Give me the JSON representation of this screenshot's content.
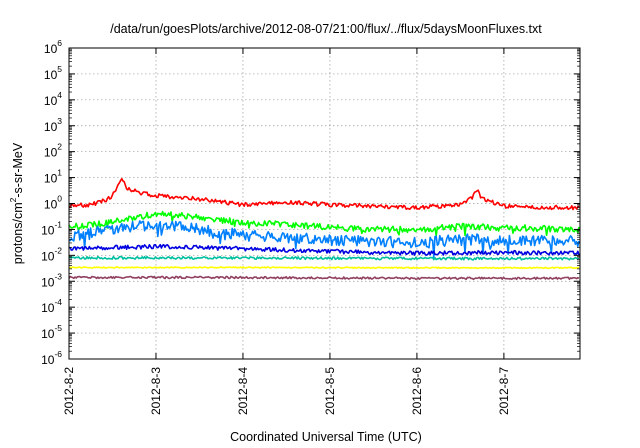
{
  "chart_data": {
    "type": "line",
    "title": "/data/run/goesPlots/archive/2012-08-07/21:00/flux/../flux/5daysMoonFluxes.txt",
    "xlabel": "Coordinated Universal Time (UTC)",
    "ylabel_base": "protons/cm",
    "ylabel_sup": "2",
    "ylabel_rest": "-s-sr-MeV",
    "y_scale": "log",
    "ylim": [
      1e-06,
      1000000.0
    ],
    "y_ticks": [
      {
        "base": "10",
        "exp": "-6"
      },
      {
        "base": "10",
        "exp": "-5"
      },
      {
        "base": "10",
        "exp": "-4"
      },
      {
        "base": "10",
        "exp": "-3"
      },
      {
        "base": "10",
        "exp": "-2"
      },
      {
        "base": "10",
        "exp": "-1"
      },
      {
        "base": "10",
        "exp": "0"
      },
      {
        "base": "10",
        "exp": "1"
      },
      {
        "base": "10",
        "exp": "2"
      },
      {
        "base": "10",
        "exp": "3"
      },
      {
        "base": "10",
        "exp": "4"
      },
      {
        "base": "10",
        "exp": "5"
      },
      {
        "base": "10",
        "exp": "6"
      }
    ],
    "x_ticks": [
      "2012-8-2",
      "2012-8-3",
      "2012-8-4",
      "2012-8-5",
      "2012-8-6",
      "2012-8-7"
    ],
    "xlim": [
      "2012-08-02",
      "2012-08-07T21:00"
    ],
    "grid": true,
    "legend": "none",
    "series": [
      {
        "color": "#ff0000",
        "noise": 0.08,
        "points": [
          [
            "2012-08-02T00:00",
            0.8
          ],
          [
            "2012-08-02T06:00",
            0.9
          ],
          [
            "2012-08-02T10:00",
            1.3
          ],
          [
            "2012-08-02T12:00",
            2.0
          ],
          [
            "2012-08-02T13:30",
            5.0
          ],
          [
            "2012-08-02T14:30",
            10.0
          ],
          [
            "2012-08-02T16:00",
            4.0
          ],
          [
            "2012-08-02T20:00",
            2.5
          ],
          [
            "2012-08-03T00:00",
            2.0
          ],
          [
            "2012-08-03T12:00",
            1.5
          ],
          [
            "2012-08-04T00:00",
            0.9
          ],
          [
            "2012-08-04T12:00",
            1.1
          ],
          [
            "2012-08-05T00:00",
            0.9
          ],
          [
            "2012-08-05T12:00",
            0.8
          ],
          [
            "2012-08-06T00:00",
            0.7
          ],
          [
            "2012-08-06T12:00",
            0.9
          ],
          [
            "2012-08-06T15:00",
            1.5
          ],
          [
            "2012-08-06T16:30",
            3.5
          ],
          [
            "2012-08-06T18:00",
            1.5
          ],
          [
            "2012-08-07T00:00",
            0.8
          ],
          [
            "2012-08-07T12:00",
            0.7
          ],
          [
            "2012-08-07T21:00",
            0.7
          ]
        ]
      },
      {
        "color": "#00ff00",
        "noise": 0.12,
        "points": [
          [
            "2012-08-02T00:00",
            0.12
          ],
          [
            "2012-08-02T12:00",
            0.2
          ],
          [
            "2012-08-03T00:00",
            0.4
          ],
          [
            "2012-08-03T12:00",
            0.3
          ],
          [
            "2012-08-04T00:00",
            0.18
          ],
          [
            "2012-08-04T12:00",
            0.16
          ],
          [
            "2012-08-05T00:00",
            0.12
          ],
          [
            "2012-08-05T12:00",
            0.1
          ],
          [
            "2012-08-06T00:00",
            0.1
          ],
          [
            "2012-08-06T12:00",
            0.13
          ],
          [
            "2012-08-07T00:00",
            0.12
          ],
          [
            "2012-08-07T21:00",
            0.1
          ]
        ]
      },
      {
        "color": "#0080ff",
        "noise": 0.22,
        "points": [
          [
            "2012-08-02T00:00",
            0.05
          ],
          [
            "2012-08-02T12:00",
            0.1
          ],
          [
            "2012-08-03T00:00",
            0.15
          ],
          [
            "2012-08-03T12:00",
            0.1
          ],
          [
            "2012-08-04T00:00",
            0.06
          ],
          [
            "2012-08-04T12:00",
            0.05
          ],
          [
            "2012-08-05T00:00",
            0.04
          ],
          [
            "2012-08-05T12:00",
            0.035
          ],
          [
            "2012-08-06T00:00",
            0.03
          ],
          [
            "2012-08-06T12:00",
            0.04
          ],
          [
            "2012-08-07T00:00",
            0.04
          ],
          [
            "2012-08-07T21:00",
            0.035
          ]
        ]
      },
      {
        "color": "#0000e0",
        "noise": 0.08,
        "points": [
          [
            "2012-08-02T00:00",
            0.018
          ],
          [
            "2012-08-03T00:00",
            0.022
          ],
          [
            "2012-08-04T00:00",
            0.018
          ],
          [
            "2012-08-05T00:00",
            0.014
          ],
          [
            "2012-08-06T00:00",
            0.012
          ],
          [
            "2012-08-07T00:00",
            0.013
          ],
          [
            "2012-08-07T21:00",
            0.012
          ]
        ]
      },
      {
        "color": "#00c0a0",
        "noise": 0.05,
        "points": [
          [
            "2012-08-02T00:00",
            0.008
          ],
          [
            "2012-08-04T00:00",
            0.008
          ],
          [
            "2012-08-06T00:00",
            0.0075
          ],
          [
            "2012-08-07T21:00",
            0.0075
          ]
        ]
      },
      {
        "color": "#ffff00",
        "noise": 0.02,
        "points": [
          [
            "2012-08-02T00:00",
            0.0034
          ],
          [
            "2012-08-04T00:00",
            0.0034
          ],
          [
            "2012-08-06T00:00",
            0.0033
          ],
          [
            "2012-08-07T21:00",
            0.0033
          ]
        ]
      },
      {
        "color": "#904060",
        "noise": 0.04,
        "points": [
          [
            "2012-08-02T00:00",
            0.0014
          ],
          [
            "2012-08-04T00:00",
            0.0014
          ],
          [
            "2012-08-06T00:00",
            0.0013
          ],
          [
            "2012-08-07T21:00",
            0.0013
          ]
        ]
      }
    ]
  }
}
